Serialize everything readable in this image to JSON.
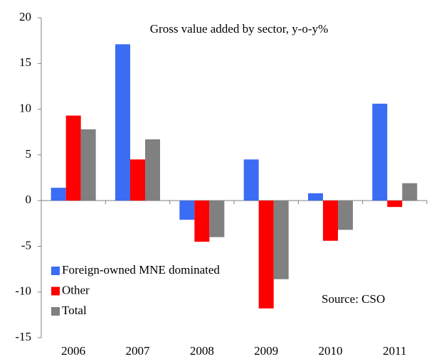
{
  "chart_data": {
    "type": "bar",
    "title": "Gross value added by sector, y-o-y%",
    "annotation": "Source: CSO",
    "categories": [
      "2006",
      "2007",
      "2008",
      "2009",
      "2010",
      "2011"
    ],
    "series": [
      {
        "name": "Foreign-owned MNE dominated",
        "color": "#3a6cf4",
        "values": [
          1.4,
          17.1,
          -2.1,
          4.5,
          0.8,
          10.6
        ]
      },
      {
        "name": "Other",
        "color": "#ff0000",
        "values": [
          9.3,
          4.5,
          -4.5,
          -11.8,
          -4.4,
          -0.7
        ]
      },
      {
        "name": "Total",
        "color": "#808080",
        "values": [
          7.8,
          6.7,
          -4.0,
          -8.6,
          -3.2,
          1.9
        ]
      }
    ],
    "ylim": [
      -15,
      20
    ],
    "yticks": [
      -15,
      -10,
      -5,
      0,
      5,
      10,
      15,
      20
    ],
    "grid": false,
    "legend": "bottom-left"
  }
}
